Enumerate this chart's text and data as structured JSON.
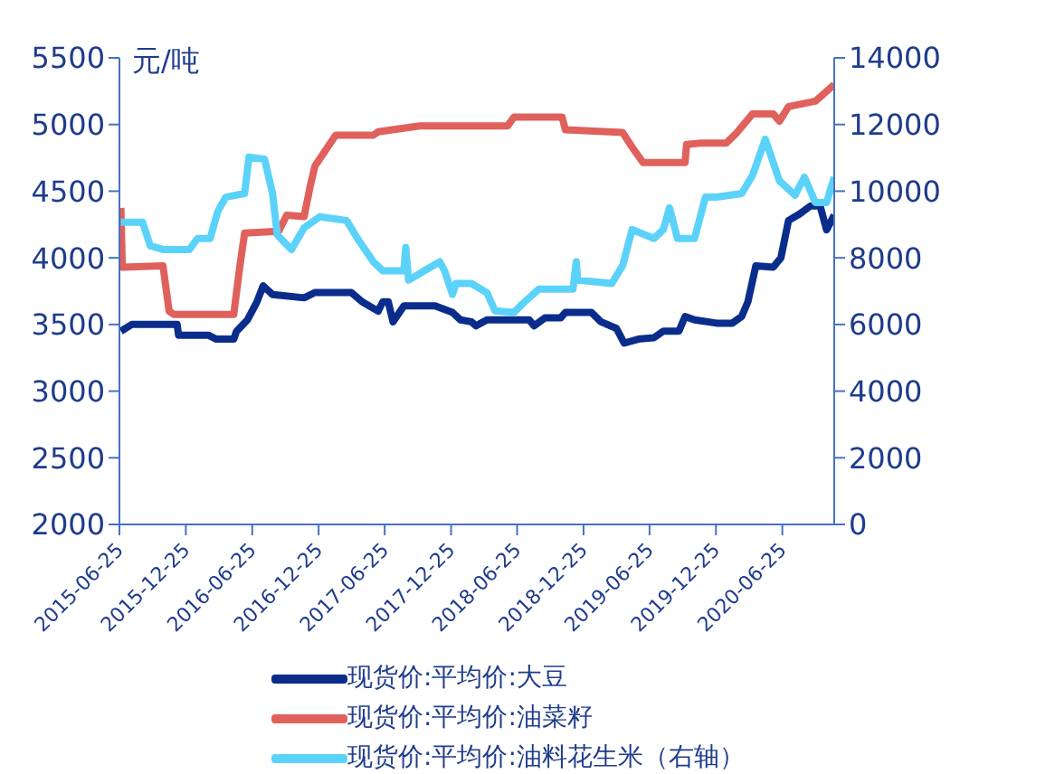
{
  "chart_data": {
    "type": "line",
    "ylabel": "元/吨",
    "xlim": [
      "2015-06-25",
      "2020-11-15"
    ],
    "xticks": [
      "2015-06-25",
      "2015-12-25",
      "2016-06-25",
      "2016-12-25",
      "2017-06-25",
      "2017-12-25",
      "2018-06-25",
      "2018-12-25",
      "2019-06-25",
      "2019-12-25",
      "2020-06-25"
    ],
    "ylim": [
      2000,
      5500
    ],
    "yticks": [
      2000,
      2500,
      3000,
      3500,
      4000,
      4500,
      5000,
      5500
    ],
    "y2lim": [
      0,
      14000
    ],
    "y2ticks": [
      0,
      2000,
      4000,
      6000,
      8000,
      10000,
      12000,
      14000
    ],
    "legend": "bottom",
    "marker": "none",
    "series": [
      {
        "name": "现货价:平均价:大豆",
        "color": "#0a2d8c",
        "x": [
          "2015-06-29",
          "2015-07-29",
          "2015-12-01",
          "2015-12-05",
          "2016-02-25",
          "2016-03-18",
          "2016-05-05",
          "2016-05-13",
          "2016-06-12",
          "2016-07-08",
          "2016-07-25",
          "2016-08-20",
          "2016-11-15",
          "2016-12-15",
          "2017-03-25",
          "2017-04-24",
          "2017-06-07",
          "2017-06-20",
          "2017-07-05",
          "2017-07-18",
          "2017-08-17",
          "2017-11-11",
          "2017-12-29",
          "2018-01-20",
          "2018-02-19",
          "2018-03-04",
          "2018-04-03",
          "2018-07-28",
          "2018-08-11",
          "2018-09-10",
          "2018-10-23",
          "2018-11-05",
          "2019-01-16",
          "2019-02-11",
          "2019-03-26",
          "2019-04-16",
          "2019-05-25",
          "2019-07-07",
          "2019-08-02",
          "2019-09-14",
          "2019-10-01",
          "2019-10-27",
          "2019-12-27",
          "2020-02-08",
          "2020-03-05",
          "2020-03-22",
          "2020-04-13",
          "2020-05-31",
          "2020-06-21",
          "2020-07-12",
          "2020-08-12",
          "2020-09-11",
          "2020-10-07",
          "2020-10-25",
          "2020-11-15"
        ],
        "values": [
          3450,
          3500,
          3500,
          3420,
          3420,
          3390,
          3390,
          3450,
          3535,
          3670,
          3790,
          3725,
          3700,
          3740,
          3740,
          3670,
          3600,
          3670,
          3670,
          3520,
          3640,
          3640,
          3590,
          3535,
          3520,
          3490,
          3535,
          3535,
          3490,
          3550,
          3550,
          3590,
          3590,
          3520,
          3470,
          3360,
          3390,
          3400,
          3450,
          3450,
          3560,
          3535,
          3510,
          3510,
          3560,
          3670,
          3940,
          3930,
          4000,
          4280,
          4330,
          4390,
          4390,
          4210,
          4320
        ]
      },
      {
        "name": "现货价:平均价:油菜籽",
        "color": "#e0605c",
        "x": [
          "2015-06-29",
          "2015-07-03",
          "2015-10-23",
          "2015-11-09",
          "2015-11-22",
          "2016-05-05",
          "2016-05-22",
          "2016-06-04",
          "2016-09-06",
          "2016-09-28",
          "2016-11-15",
          "2016-12-02",
          "2016-12-15",
          "2017-02-10",
          "2017-05-25",
          "2017-06-07",
          "2017-09-30",
          "2018-05-30",
          "2018-06-16",
          "2018-10-27",
          "2018-11-05",
          "2019-04-12",
          "2019-05-08",
          "2019-06-07",
          "2019-10-01",
          "2019-10-05",
          "2019-11-13",
          "2020-01-22",
          "2020-02-21",
          "2020-04-04",
          "2020-05-31",
          "2020-06-17",
          "2020-07-12",
          "2020-09-24",
          "2020-11-15"
        ],
        "values": [
          4375,
          3930,
          3940,
          3600,
          3575,
          3575,
          3940,
          4185,
          4200,
          4320,
          4310,
          4540,
          4690,
          4920,
          4920,
          4945,
          4990,
          4990,
          5055,
          5055,
          4960,
          4940,
          4830,
          4715,
          4715,
          4850,
          4860,
          4860,
          4940,
          5080,
          5080,
          5025,
          5135,
          5175,
          5300
        ]
      },
      {
        "name": "现货价:平均价:油料花生米（右轴）",
        "color": "#5bd2fa",
        "axis": "y2",
        "x": [
          "2015-06-29",
          "2015-08-28",
          "2015-09-18",
          "2015-10-23",
          "2016-01-04",
          "2016-01-26",
          "2016-03-01",
          "2016-03-22",
          "2016-04-13",
          "2016-06-04",
          "2016-06-16",
          "2016-07-29",
          "2016-08-20",
          "2016-09-02",
          "2016-10-11",
          "2016-11-15",
          "2016-12-28",
          "2017-03-12",
          "2017-04-11",
          "2017-05-25",
          "2017-06-20",
          "2017-08-17",
          "2017-08-22",
          "2017-08-30",
          "2017-10-12",
          "2017-11-24",
          "2017-12-07",
          "2017-12-29",
          "2018-01-07",
          "2018-02-19",
          "2018-04-03",
          "2018-04-25",
          "2018-06-16",
          "2018-07-11",
          "2018-08-24",
          "2018-10-23",
          "2018-11-26",
          "2018-12-05",
          "2018-12-09",
          "2019-03-13",
          "2019-04-12",
          "2019-05-08",
          "2019-07-07",
          "2019-08-02",
          "2019-08-19",
          "2019-09-10",
          "2019-10-27",
          "2019-11-26",
          "2019-12-27",
          "2020-03-05",
          "2020-04-04",
          "2020-05-09",
          "2020-06-17",
          "2020-07-30",
          "2020-08-25",
          "2020-09-24",
          "2020-10-25",
          "2020-11-15"
        ],
        "values": [
          9070,
          9070,
          8360,
          8250,
          8250,
          8580,
          8580,
          9390,
          9820,
          9930,
          11020,
          10960,
          9930,
          8690,
          8250,
          8900,
          9230,
          9120,
          8580,
          7880,
          7610,
          7610,
          8310,
          7330,
          7610,
          7880,
          7610,
          6900,
          7230,
          7230,
          6950,
          6410,
          6360,
          6630,
          7060,
          7060,
          7060,
          7880,
          7330,
          7230,
          7770,
          8850,
          8580,
          8850,
          9500,
          8580,
          8580,
          9820,
          9820,
          9930,
          10480,
          11560,
          10310,
          9880,
          10420,
          9660,
          9660,
          10420
        ]
      }
    ]
  }
}
